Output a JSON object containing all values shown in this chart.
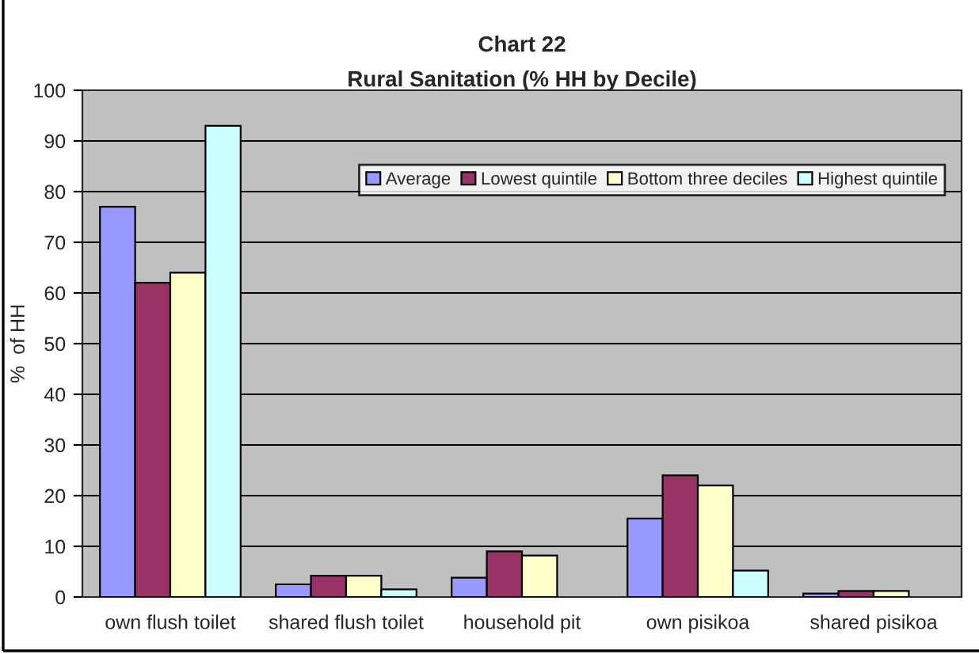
{
  "chart_data": {
    "type": "bar",
    "title": "Chart 22\nRural Sanitation (% HH by Decile)",
    "ylabel": "%  of HH",
    "categories": [
      "own flush toilet",
      "shared flush toilet",
      "household pit",
      "own pisikoa",
      "shared pisikoa"
    ],
    "series": [
      {
        "name": "Average",
        "color": "#9999ff",
        "values": [
          77,
          2.5,
          3.8,
          15.5,
          0.7
        ]
      },
      {
        "name": "Lowest quintile",
        "color": "#993366",
        "values": [
          62,
          4.2,
          9,
          24,
          1.2
        ]
      },
      {
        "name": "Bottom three deciles",
        "color": "#ffffcc",
        "values": [
          64,
          4.2,
          8.2,
          22,
          1.2
        ]
      },
      {
        "name": "Highest quintile",
        "color": "#ccffff",
        "values": [
          93,
          1.5,
          null,
          5.2,
          null
        ]
      }
    ],
    "ylim": [
      0,
      100
    ],
    "yticks": [
      0,
      10,
      20,
      30,
      40,
      50,
      60,
      70,
      80,
      90,
      100
    ],
    "grid": "y",
    "legend": "top right"
  }
}
